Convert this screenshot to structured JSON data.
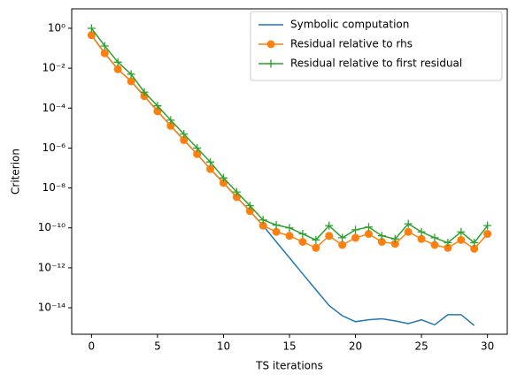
{
  "chart_data": {
    "type": "line",
    "xlabel": "TS iterations",
    "ylabel": "Criterion",
    "x": [
      0,
      1,
      2,
      3,
      4,
      5,
      6,
      7,
      8,
      9,
      10,
      11,
      12,
      13,
      14,
      15,
      16,
      17,
      18,
      19,
      20,
      21,
      22,
      23,
      24,
      25,
      26,
      27,
      28,
      29,
      30
    ],
    "series": [
      {
        "name": "Symbolic computation",
        "color": "#1f77b4",
        "marker": "none",
        "values": [
          0.45,
          0.056,
          0.0089,
          0.0022,
          0.0004,
          7e-05,
          1.3e-05,
          2.5e-06,
          5e-07,
          8.9e-08,
          1.8e-08,
          3.5e-09,
          7e-10,
          1.3e-10,
          2e-11,
          3.2e-12,
          5e-13,
          8e-14,
          1.3e-14,
          4e-15,
          2e-15,
          2.5e-15,
          2.8e-15,
          2.2e-15,
          1.6e-15,
          2.5e-15,
          1.4e-15,
          4.5e-15,
          4.5e-15,
          1.3e-15,
          null
        ]
      },
      {
        "name": "Residual relative to rhs",
        "color": "#ff7f0e",
        "marker": "circle",
        "values": [
          0.45,
          0.056,
          0.0089,
          0.0022,
          0.0004,
          7e-05,
          1.3e-05,
          2.5e-06,
          5e-07,
          8.9e-08,
          1.8e-08,
          3.5e-09,
          7e-10,
          1.3e-10,
          6.3e-11,
          4e-11,
          2e-11,
          1e-11,
          4e-11,
          1.4e-11,
          3.2e-11,
          5e-11,
          2e-11,
          1.6e-11,
          6.3e-11,
          2.8e-11,
          1.4e-11,
          1e-11,
          2.5e-11,
          9e-12,
          5e-11
        ]
      },
      {
        "name": "Residual relative to first residual",
        "color": "#2ca02c",
        "marker": "plus",
        "values": [
          1,
          0.13,
          0.02,
          0.005,
          0.00063,
          0.00013,
          2.5e-05,
          5e-06,
          1e-06,
          2e-07,
          3.2e-08,
          6.3e-09,
          1.3e-09,
          2.5e-10,
          1.4e-10,
          1e-10,
          5e-11,
          2.5e-11,
          1.3e-10,
          3.2e-11,
          8e-11,
          1.1e-10,
          4e-11,
          2.8e-11,
          1.6e-10,
          6.3e-11,
          3.2e-11,
          1.8e-11,
          6.3e-11,
          1.8e-11,
          1.3e-10
        ]
      }
    ],
    "xlim": [
      -1.5,
      31.5
    ],
    "xticks": [
      0,
      5,
      10,
      15,
      20,
      25,
      30
    ],
    "ylim": [
      4.7e-16,
      9.4
    ],
    "yscale": "log",
    "yticks": [
      {
        "value": 1,
        "label": "10⁰"
      },
      {
        "value": 0.01,
        "label": "10⁻²"
      },
      {
        "value": 0.0001,
        "label": "10⁻⁴"
      },
      {
        "value": 1e-06,
        "label": "10⁻⁶"
      },
      {
        "value": 1e-08,
        "label": "10⁻⁸"
      },
      {
        "value": 1e-10,
        "label": "10⁻¹⁰"
      },
      {
        "value": 1e-12,
        "label": "10⁻¹²"
      },
      {
        "value": 1e-14,
        "label": "10⁻¹⁴"
      }
    ],
    "legend": "upper right"
  }
}
